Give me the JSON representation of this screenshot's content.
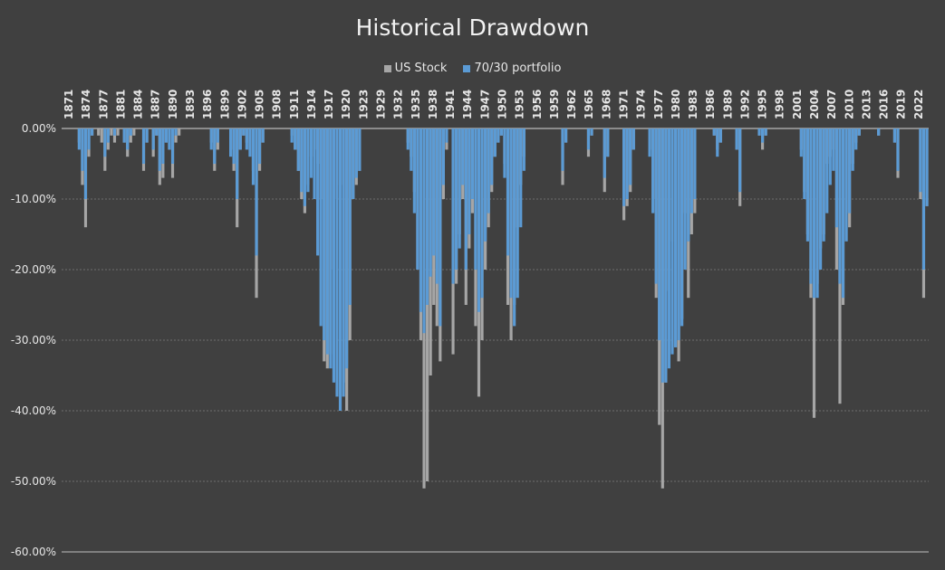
{
  "chart_data": {
    "type": "area",
    "title": "Historical Drawdown",
    "xlabel": "",
    "ylabel": "",
    "ylim": [
      -60,
      0
    ],
    "yticks": [
      "0.00%",
      "-10.00%",
      "-20.00%",
      "-30.00%",
      "-40.00%",
      "-50.00%",
      "-60.00%"
    ],
    "xticks": [
      "1871",
      "1874",
      "1877",
      "1881",
      "1884",
      "1887",
      "1890",
      "1893",
      "1896",
      "1899",
      "1902",
      "1905",
      "1908",
      "1911",
      "1914",
      "1917",
      "1920",
      "1923",
      "1929",
      "1932",
      "1935",
      "1938",
      "1941",
      "1944",
      "1947",
      "1950",
      "1953",
      "1956",
      "1959",
      "1962",
      "1965",
      "1968",
      "1971",
      "1974",
      "1977",
      "1980",
      "1983",
      "1986",
      "1989",
      "1992",
      "1995",
      "1998",
      "2001",
      "2004",
      "2007",
      "2010",
      "2013",
      "2016",
      "2019",
      "2022"
    ],
    "grid": true,
    "legend_position": "top",
    "series": [
      {
        "name": "US Stock",
        "color": "#a6a6a6",
        "values": [
          0,
          0,
          0,
          0,
          0,
          -2,
          -8,
          -14,
          -4,
          -1,
          0,
          -1,
          -2,
          -6,
          -3,
          -1,
          -2,
          -1,
          0,
          -2,
          -4,
          -2,
          -1,
          0,
          0,
          -6,
          -2,
          0,
          -4,
          -1,
          -8,
          -7,
          -2,
          -3,
          -7,
          -2,
          -1,
          0,
          0,
          0,
          0,
          0,
          0,
          0,
          0,
          0,
          -2,
          -6,
          -3,
          0,
          0,
          0,
          -3,
          -6,
          -14,
          -3,
          -1,
          -2,
          -3,
          -6,
          -24,
          -6,
          -2,
          0,
          0,
          0,
          0,
          0,
          0,
          0,
          0,
          -1,
          -3,
          -6,
          -10,
          -12,
          -8,
          -4,
          -3,
          -5,
          -10,
          -33,
          -34,
          -32,
          -20,
          -10,
          -8,
          -36,
          -40,
          -30,
          -10,
          -8,
          -6,
          0,
          0,
          0,
          0,
          0,
          0,
          0,
          0,
          0,
          0,
          0,
          0,
          0,
          0,
          -2,
          -4,
          -9,
          -20,
          -30,
          -51,
          -50,
          -35,
          -25,
          -28,
          -33,
          -10,
          -3,
          0,
          -32,
          -22,
          -15,
          -10,
          -25,
          -17,
          -12,
          -28,
          -38,
          -30,
          -20,
          -14,
          -9,
          -4,
          -2,
          -1,
          -5,
          -25,
          -30,
          -25,
          -14,
          -8,
          -4,
          0,
          0,
          0,
          0,
          0,
          0,
          0,
          0,
          0,
          0,
          0,
          -8,
          -2,
          0,
          0,
          0,
          0,
          0,
          0,
          -4,
          -1,
          0,
          0,
          0,
          -9,
          -4,
          0,
          0,
          0,
          0,
          -13,
          -11,
          -9,
          -3,
          0,
          0,
          0,
          0,
          -3,
          -10,
          -24,
          -42,
          -51,
          -36,
          -23,
          -16,
          -31,
          -33,
          -27,
          -12,
          -24,
          -15,
          -12,
          0,
          0,
          0,
          0,
          0,
          -1,
          -3,
          -2,
          0,
          0,
          0,
          0,
          -3,
          -11,
          0,
          0,
          0,
          0,
          0,
          -1,
          -3,
          -1,
          0,
          0,
          0,
          0,
          0,
          0,
          0,
          0,
          0,
          0,
          -3,
          -9,
          -15,
          -24,
          -41,
          -22,
          -17,
          -15,
          -5,
          -4,
          -3,
          -20,
          -39,
          -25,
          -12,
          -14,
          -5,
          -2,
          -1,
          0,
          0,
          0,
          0,
          0,
          -1,
          0,
          0,
          0,
          0,
          -2,
          -7,
          0,
          0,
          0,
          0,
          0,
          0,
          -10,
          -24,
          -11
        ]
      },
      {
        "name": "70/30 portfolio",
        "color": "#5b9bd5",
        "values": [
          0,
          0,
          0,
          0,
          0,
          -3,
          -6,
          -10,
          -3,
          -1,
          0,
          0,
          0,
          -4,
          -2,
          0,
          -1,
          0,
          0,
          -2,
          -3,
          -1,
          0,
          0,
          0,
          -5,
          -2,
          0,
          -3,
          -1,
          -6,
          -5,
          -2,
          -3,
          -5,
          -1,
          0,
          0,
          0,
          0,
          0,
          0,
          0,
          0,
          0,
          0,
          -3,
          -5,
          -2,
          0,
          0,
          0,
          -4,
          -5,
          -10,
          -3,
          -1,
          -3,
          -4,
          -8,
          -18,
          -5,
          -2,
          0,
          0,
          0,
          0,
          0,
          0,
          0,
          0,
          -2,
          -3,
          -6,
          -9,
          -11,
          -9,
          -7,
          -10,
          -18,
          -28,
          -30,
          -32,
          -34,
          -36,
          -38,
          -40,
          -38,
          -34,
          -25,
          -10,
          -7,
          -6,
          0,
          0,
          0,
          0,
          0,
          0,
          0,
          0,
          0,
          0,
          0,
          0,
          0,
          0,
          -3,
          -6,
          -12,
          -20,
          -26,
          -29,
          -25,
          -21,
          -18,
          -22,
          -28,
          -8,
          -2,
          0,
          -22,
          -20,
          -17,
          -8,
          -20,
          -15,
          -10,
          -20,
          -26,
          -24,
          -16,
          -12,
          -8,
          -4,
          -2,
          -1,
          -7,
          -18,
          -24,
          -28,
          -24,
          -14,
          -6,
          0,
          0,
          0,
          0,
          0,
          0,
          0,
          0,
          0,
          0,
          0,
          -6,
          -2,
          0,
          0,
          0,
          0,
          0,
          0,
          -3,
          -1,
          0,
          0,
          0,
          -7,
          -4,
          0,
          0,
          0,
          0,
          -11,
          -10,
          -8,
          -3,
          0,
          0,
          0,
          0,
          -4,
          -12,
          -22,
          -30,
          -36,
          -36,
          -34,
          -32,
          -31,
          -30,
          -28,
          -20,
          -16,
          -12,
          -10,
          0,
          0,
          0,
          0,
          0,
          -1,
          -4,
          -2,
          0,
          0,
          0,
          0,
          -3,
          -9,
          0,
          0,
          0,
          0,
          0,
          -1,
          -2,
          -1,
          0,
          0,
          0,
          0,
          0,
          0,
          0,
          0,
          0,
          0,
          -4,
          -10,
          -16,
          -22,
          -24,
          -24,
          -20,
          -16,
          -12,
          -8,
          -6,
          -14,
          -22,
          -24,
          -16,
          -12,
          -6,
          -3,
          -1,
          0,
          0,
          0,
          0,
          0,
          -1,
          0,
          0,
          0,
          0,
          -2,
          -6,
          0,
          0,
          0,
          0,
          0,
          0,
          -9,
          -20,
          -11
        ]
      }
    ]
  }
}
